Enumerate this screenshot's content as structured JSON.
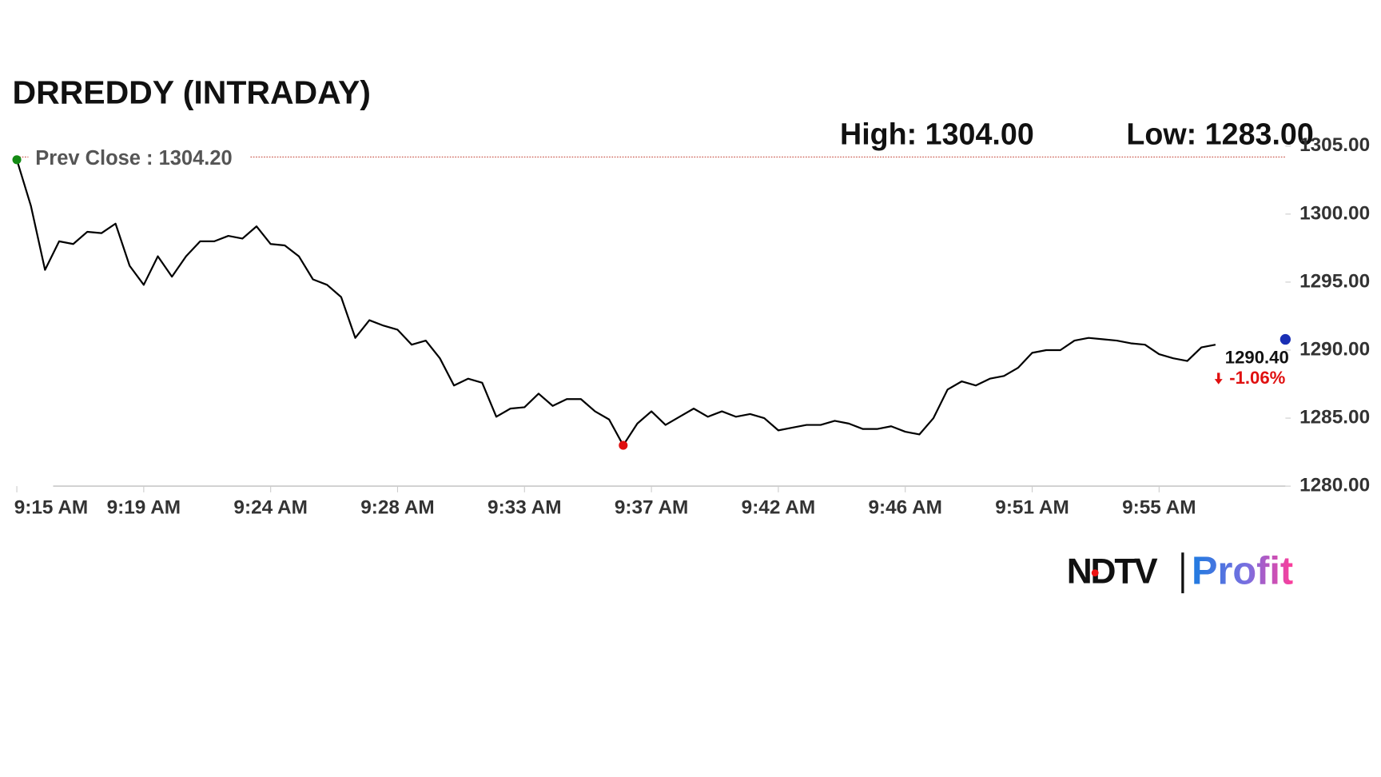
{
  "chart_data": {
    "type": "line",
    "title": "DRREDDY (INTRADAY)",
    "high_label": "High: 1304.00",
    "low_label": "Low: 1283.00",
    "prev_close_label": "Prev Close : 1304.20",
    "prev_close": 1304.2,
    "last_label": "1290.40",
    "change_label": "-1.06%",
    "categories": [
      "9:15 AM",
      null,
      null,
      null,
      null,
      null,
      null,
      null,
      null,
      "9:19 AM",
      null,
      null,
      null,
      null,
      null,
      null,
      null,
      null,
      "9:24 AM",
      null,
      null,
      null,
      null,
      null,
      null,
      null,
      null,
      "9:28 AM",
      null,
      null,
      null,
      null,
      null,
      null,
      null,
      null,
      "9:33 AM",
      null,
      null,
      null,
      null,
      null,
      null,
      null,
      null,
      "9:37 AM",
      null,
      null,
      null,
      null,
      null,
      null,
      null,
      null,
      "9:42 AM",
      null,
      null,
      null,
      null,
      null,
      null,
      null,
      null,
      "9:46 AM",
      null,
      null,
      null,
      null,
      null,
      null,
      null,
      null,
      "9:51 AM",
      null,
      null,
      null,
      null,
      null,
      null,
      null,
      null,
      "9:55 AM",
      null,
      null,
      null,
      null
    ],
    "series": [
      {
        "color": "#000000",
        "values": [
          1304.0,
          1300.6,
          1295.9,
          1298.0,
          1297.8,
          1298.7,
          1298.6,
          1299.3,
          1296.2,
          1294.8,
          1296.9,
          1295.4,
          1296.9,
          1298.0,
          1298.0,
          1298.4,
          1298.2,
          1299.1,
          1297.8,
          1297.7,
          1296.9,
          1295.2,
          1294.8,
          1293.9,
          1290.9,
          1292.2,
          1291.8,
          1291.5,
          1290.4,
          1290.7,
          1289.4,
          1287.4,
          1287.9,
          1287.6,
          1285.1,
          1285.7,
          1285.8,
          1286.8,
          1285.9,
          1286.4,
          1286.4,
          1285.5,
          1284.9,
          1283.0,
          1284.6,
          1285.5,
          1284.5,
          1285.1,
          1285.7,
          1285.1,
          1285.5,
          1285.1,
          1285.3,
          1285.0,
          1284.1,
          1284.3,
          1284.5,
          1284.5,
          1284.8,
          1284.6,
          1284.2,
          1284.2,
          1284.4,
          1284.0,
          1283.8,
          1285.0,
          1287.1,
          1287.7,
          1287.4,
          1287.9,
          1288.1,
          1288.7,
          1289.8,
          1290.0,
          1290.0,
          1290.7,
          1290.9,
          1290.8,
          1290.7,
          1290.5,
          1290.4,
          1289.7,
          1289.4,
          1289.2,
          1290.2,
          1290.4
        ]
      }
    ],
    "ylim": [
      1280,
      1305
    ],
    "yticks": [
      {
        "value": 1280,
        "label": "1280.00"
      },
      {
        "value": 1285,
        "label": "1285.00"
      },
      {
        "value": 1290,
        "label": "1290.00"
      },
      {
        "value": 1295,
        "label": "1295.00"
      },
      {
        "value": 1300,
        "label": "1300.00"
      },
      {
        "value": 1305,
        "label": "1305.00"
      }
    ],
    "logo": {
      "left": "NDTV",
      "right": "Profit"
    }
  }
}
